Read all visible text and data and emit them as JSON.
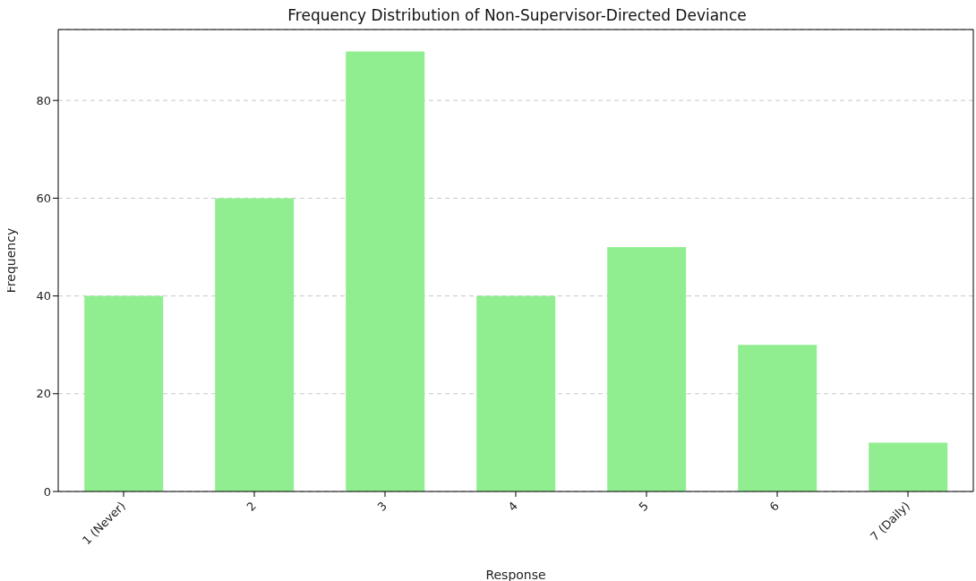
{
  "chart_data": {
    "type": "bar",
    "title": "Frequency Distribution of Non-Supervisor-Directed Deviance",
    "xlabel": "Response",
    "ylabel": "Frequency",
    "categories": [
      "1 (Never)",
      "2",
      "3",
      "4",
      "5",
      "6",
      "7 (Daily)"
    ],
    "values": [
      40,
      60,
      90,
      40,
      50,
      30,
      10
    ],
    "color": "#90ee90",
    "ylim": [
      0,
      94.5
    ],
    "yticks": [
      0,
      20,
      40,
      60,
      80
    ],
    "grid": "y"
  }
}
